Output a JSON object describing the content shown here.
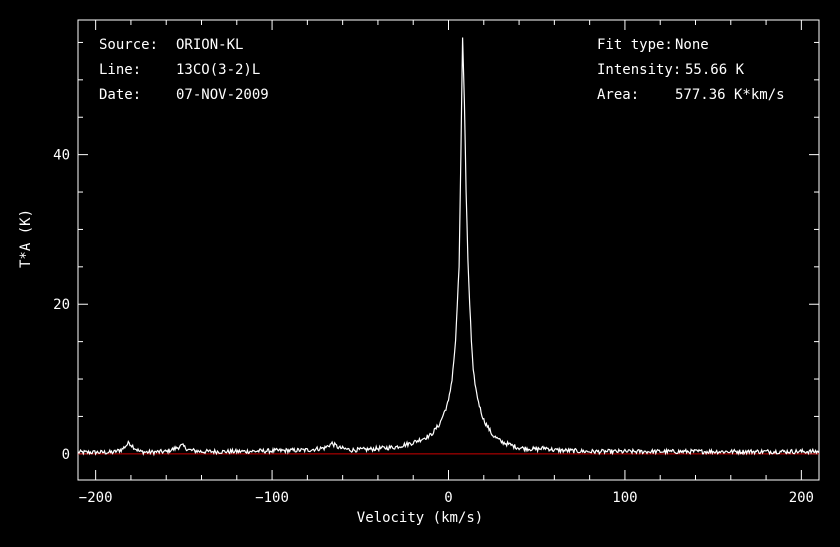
{
  "header_left": {
    "source_label": "Source:",
    "source_value": "ORION-KL",
    "line_label": "Line:",
    "line_value": "13CO(3-2)L",
    "date_label": "Date:",
    "date_value": "07-NOV-2009"
  },
  "header_right": {
    "fit_label": "Fit type:",
    "fit_value": "None",
    "intensity_label": "Intensity:",
    "intensity_value": "55.66 K",
    "area_label": "Area:",
    "area_value": "577.36 K*km/s"
  },
  "chart_data": {
    "type": "line",
    "xlabel": "Velocity (km/s)",
    "ylabel": "T*A (K)",
    "xlim": [
      -210,
      210
    ],
    "ylim": [
      -3.5,
      58
    ],
    "xticks": [
      -200,
      -100,
      0,
      100,
      200
    ],
    "xtick_labels": [
      "−200",
      "−100",
      "0",
      "100",
      "200"
    ],
    "yticks": [
      0,
      20,
      40
    ],
    "ytick_labels": [
      "0",
      "20",
      "40"
    ],
    "baseline": 0,
    "colors": {
      "spectrum": "#ffffff",
      "baseline": "#cc0000",
      "frame": "#ffffff",
      "background": "#000000"
    },
    "series": [
      {
        "x": [
          -210,
          -190,
          -185,
          -181,
          -178,
          -175,
          -170,
          -160,
          -155,
          -151,
          -147,
          -140,
          -120,
          -100,
          -80,
          -70,
          -66,
          -62,
          -55,
          -45,
          -30,
          -20,
          -10,
          -5,
          0,
          2,
          4,
          6,
          7,
          8,
          9,
          10,
          11,
          12,
          13,
          14,
          16,
          18,
          20,
          25,
          30,
          40,
          50,
          55,
          60,
          80,
          100,
          120,
          140,
          160,
          180,
          210
        ],
        "y": [
          0.2,
          0.2,
          0.6,
          1.5,
          0.8,
          0.3,
          0.2,
          0.3,
          0.7,
          1.1,
          0.5,
          0.3,
          0.3,
          0.4,
          0.5,
          0.8,
          1.4,
          0.8,
          0.5,
          0.6,
          0.9,
          1.5,
          2.5,
          4,
          7,
          10,
          15,
          25,
          40,
          55.66,
          47,
          35,
          26,
          20,
          15,
          11,
          8,
          6,
          4.5,
          2.5,
          1.6,
          0.8,
          0.6,
          0.8,
          0.5,
          0.3,
          0.3,
          0.3,
          0.3,
          0.3,
          0.3,
          0.3
        ]
      }
    ]
  }
}
